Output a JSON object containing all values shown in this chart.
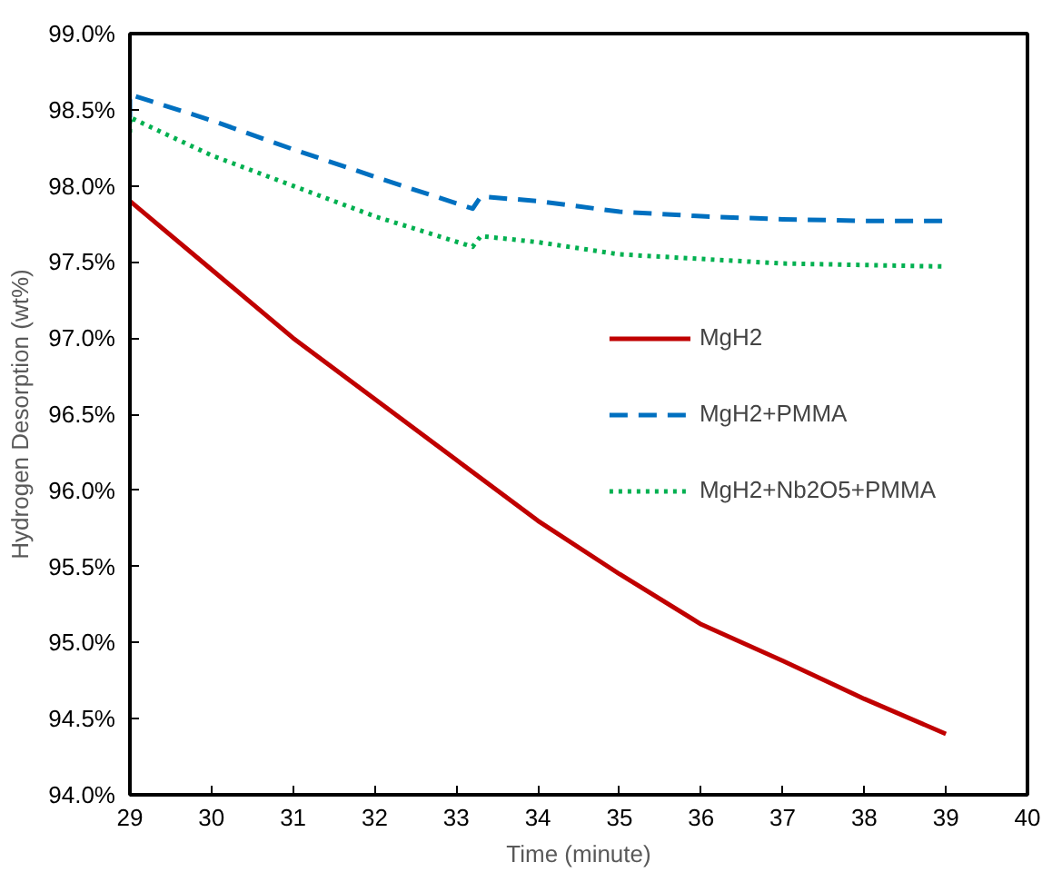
{
  "chart_data": {
    "type": "line",
    "xlabel": "Time (minute)",
    "ylabel": "Hydrogen Desorption (wt%)",
    "xlim": [
      29,
      40
    ],
    "xticks": [
      29,
      30,
      31,
      32,
      33,
      34,
      35,
      36,
      37,
      38,
      39,
      40
    ],
    "ylim": [
      94.0,
      99.0
    ],
    "yticks": [
      {
        "value": 94.0,
        "label": "94.0%"
      },
      {
        "value": 94.5,
        "label": "94.5%"
      },
      {
        "value": 95.0,
        "label": "95.0%"
      },
      {
        "value": 95.5,
        "label": "95.5%"
      },
      {
        "value": 96.0,
        "label": "96.0%"
      },
      {
        "value": 96.5,
        "label": "96.5%"
      },
      {
        "value": 97.0,
        "label": "97.0%"
      },
      {
        "value": 97.5,
        "label": "97.5%"
      },
      {
        "value": 98.0,
        "label": "98.0%"
      },
      {
        "value": 98.5,
        "label": "98.5%"
      },
      {
        "value": 99.0,
        "label": "99.0%"
      }
    ],
    "grid": false,
    "legend": "right",
    "marker": "none",
    "series": [
      {
        "name": "MgH2",
        "color": "#c00000",
        "line_style": "solid",
        "x": [
          29,
          30,
          31,
          32,
          33,
          34,
          35,
          36,
          37,
          38,
          39
        ],
        "values": [
          97.9,
          97.45,
          97.0,
          96.6,
          96.2,
          95.8,
          95.45,
          95.12,
          94.88,
          94.63,
          94.4
        ]
      },
      {
        "name": "MgH2+PMMA",
        "color": "#0070c0",
        "line_style": "dashed",
        "x": [
          29,
          29,
          30,
          31,
          32,
          33.2,
          33.3,
          34,
          35,
          36,
          37,
          38,
          39
        ],
        "values": [
          98.45,
          98.6,
          98.43,
          98.24,
          98.06,
          97.85,
          97.93,
          97.9,
          97.83,
          97.8,
          97.78,
          97.77,
          97.77
        ]
      },
      {
        "name": "MgH2+Nb2O5+PMMA",
        "color": "#00b050",
        "line_style": "dotted",
        "x": [
          29,
          29,
          30,
          31,
          32,
          33.2,
          33.3,
          34,
          35,
          36,
          37,
          38,
          39
        ],
        "values": [
          98.35,
          98.45,
          98.2,
          98.0,
          97.8,
          97.6,
          97.67,
          97.63,
          97.55,
          97.52,
          97.49,
          97.48,
          97.47
        ]
      }
    ]
  }
}
